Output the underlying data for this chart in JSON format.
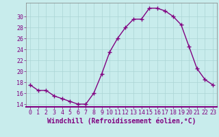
{
  "x": [
    0,
    1,
    2,
    3,
    4,
    5,
    6,
    7,
    8,
    9,
    10,
    11,
    12,
    13,
    14,
    15,
    16,
    17,
    18,
    19,
    20,
    21,
    22,
    23
  ],
  "y": [
    17.5,
    16.5,
    16.5,
    15.5,
    15.0,
    14.5,
    14.0,
    14.0,
    16.0,
    19.5,
    23.5,
    26.0,
    28.0,
    29.5,
    29.5,
    31.5,
    31.5,
    31.0,
    30.0,
    28.5,
    24.5,
    20.5,
    18.5,
    17.5
  ],
  "line_color": "#800080",
  "marker": "+",
  "marker_size": 4,
  "bg_color": "#c8ecec",
  "grid_color": "#aad4d4",
  "xlabel": "Windchill (Refroidissement éolien,°C)",
  "yticks": [
    14,
    16,
    18,
    20,
    22,
    24,
    26,
    28,
    30
  ],
  "ylim": [
    13.5,
    32.5
  ],
  "xlim": [
    -0.5,
    23.5
  ],
  "xtick_labels": [
    "0",
    "1",
    "2",
    "3",
    "4",
    "5",
    "6",
    "7",
    "8",
    "9",
    "10",
    "11",
    "12",
    "13",
    "14",
    "15",
    "16",
    "17",
    "18",
    "19",
    "20",
    "21",
    "22",
    "23"
  ],
  "label_color": "#800080",
  "xlabel_fontsize": 7,
  "tick_fontsize": 6,
  "border_color": "#808080",
  "spine_bottom_color": "#800080"
}
